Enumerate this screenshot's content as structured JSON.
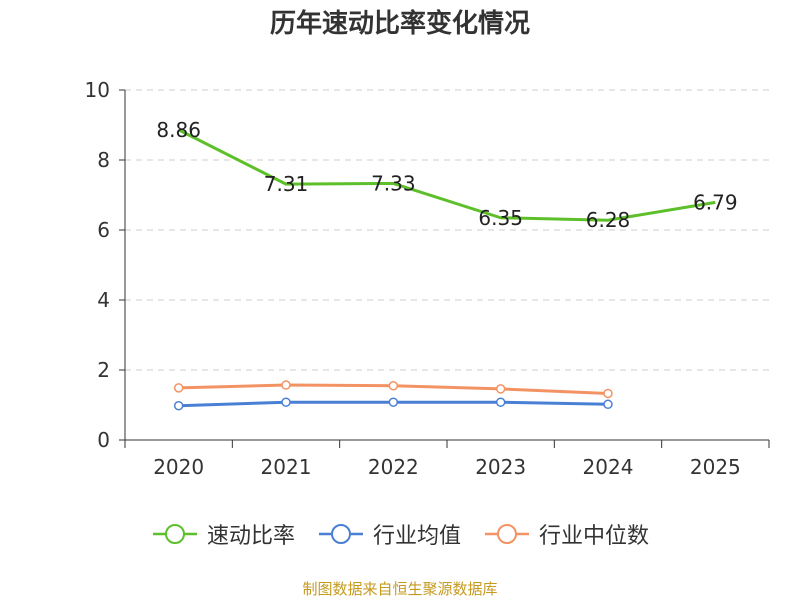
{
  "chart_data": {
    "type": "line",
    "title": "历年速动比率变化情况",
    "categories": [
      "2020",
      "2021",
      "2022",
      "2023",
      "2024",
      "2025"
    ],
    "ylim": [
      0,
      10
    ],
    "yticks": [
      0,
      2,
      4,
      6,
      8,
      10
    ],
    "grid": true,
    "legend_position": "bottom",
    "series": [
      {
        "name": "速动比率",
        "color": "#5dbf2a",
        "values": [
          8.86,
          7.31,
          7.33,
          6.35,
          6.28,
          6.79
        ],
        "show_labels": true,
        "markers": false
      },
      {
        "name": "行业均值",
        "color": "#4a7fd6",
        "values": [
          0.98,
          1.08,
          1.08,
          1.08,
          1.02,
          null
        ],
        "show_labels": false,
        "markers": true
      },
      {
        "name": "行业中位数",
        "color": "#f39363",
        "values": [
          1.49,
          1.57,
          1.55,
          1.46,
          1.33,
          null
        ],
        "show_labels": false,
        "markers": true
      }
    ],
    "source": "制图数据来自恒生聚源数据库"
  }
}
